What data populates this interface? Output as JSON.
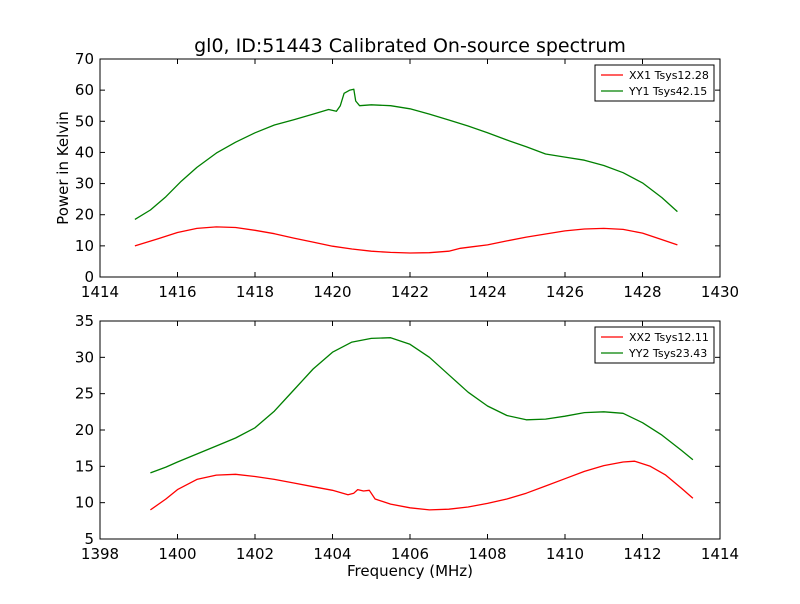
{
  "figure_title": "gl0, ID:51443 Calibrated On-source spectrum",
  "chart_data": [
    {
      "type": "line",
      "title": "gl0, ID:51443 Calibrated On-source spectrum",
      "xlabel": "",
      "ylabel": "Power in Kelvin",
      "xlim": [
        1414,
        1430
      ],
      "ylim": [
        0,
        70
      ],
      "xticks": [
        1414,
        1416,
        1418,
        1420,
        1422,
        1424,
        1426,
        1428,
        1430
      ],
      "yticks": [
        0,
        10,
        20,
        30,
        40,
        50,
        60,
        70
      ],
      "xtick_labels": [
        "1414",
        "1416",
        "1418",
        "1420",
        "1422",
        "1424",
        "1426",
        "1428",
        "1430"
      ],
      "ytick_labels": [
        "0",
        "10",
        "20",
        "30",
        "40",
        "50",
        "60",
        "70"
      ],
      "grid": false,
      "legend_position": "top-right",
      "series": [
        {
          "name": "XX1 Tsys12.28",
          "color": "#ff0000",
          "x": [
            1414.9,
            1415.5,
            1416.0,
            1416.5,
            1417.0,
            1417.5,
            1418.0,
            1418.5,
            1419.0,
            1419.5,
            1420.0,
            1420.5,
            1421.0,
            1421.5,
            1422.0,
            1422.5,
            1423.0,
            1423.3,
            1423.6,
            1424.0,
            1424.5,
            1425.0,
            1425.5,
            1426.0,
            1426.5,
            1427.0,
            1427.5,
            1428.0,
            1428.5,
            1428.9
          ],
          "values": [
            10.0,
            12.3,
            14.3,
            15.6,
            16.1,
            15.9,
            15.0,
            13.9,
            12.5,
            11.2,
            9.9,
            9.0,
            8.3,
            7.9,
            7.7,
            7.8,
            8.3,
            9.2,
            9.7,
            10.3,
            11.6,
            12.8,
            13.8,
            14.8,
            15.4,
            15.6,
            15.3,
            14.1,
            12.0,
            10.3
          ]
        },
        {
          "name": "YY1 Tsys42.15",
          "color": "#008000",
          "x": [
            1414.9,
            1415.3,
            1415.7,
            1416.1,
            1416.5,
            1417.0,
            1417.5,
            1418.0,
            1418.5,
            1419.0,
            1419.5,
            1419.9,
            1420.1,
            1420.2,
            1420.3,
            1420.45,
            1420.55,
            1420.6,
            1420.7,
            1421.0,
            1421.5,
            1422.0,
            1422.5,
            1423.0,
            1423.5,
            1424.0,
            1424.5,
            1425.0,
            1425.5,
            1426.0,
            1426.5,
            1427.0,
            1427.5,
            1428.0,
            1428.5,
            1428.9
          ],
          "values": [
            18.5,
            21.5,
            25.8,
            30.8,
            35.2,
            39.8,
            43.3,
            46.3,
            48.8,
            50.5,
            52.3,
            53.8,
            53.2,
            55.0,
            59.0,
            60.0,
            60.3,
            56.5,
            55.0,
            55.3,
            55.0,
            54.0,
            52.3,
            50.4,
            48.5,
            46.3,
            44.0,
            41.8,
            39.5,
            38.5,
            37.5,
            35.8,
            33.5,
            30.2,
            25.5,
            21.0
          ]
        }
      ]
    },
    {
      "type": "line",
      "title": "",
      "xlabel": "Frequency (MHz)",
      "ylabel": "",
      "xlim": [
        1398,
        1414
      ],
      "ylim": [
        5,
        35
      ],
      "xticks": [
        1398,
        1400,
        1402,
        1404,
        1406,
        1408,
        1410,
        1412,
        1414
      ],
      "yticks": [
        5,
        10,
        15,
        20,
        25,
        30,
        35
      ],
      "xtick_labels": [
        "1398",
        "1400",
        "1402",
        "1404",
        "1406",
        "1408",
        "1410",
        "1412",
        "1414"
      ],
      "ytick_labels": [
        "5",
        "10",
        "15",
        "20",
        "25",
        "30",
        "35"
      ],
      "grid": false,
      "legend_position": "top-right",
      "series": [
        {
          "name": "XX2 Tsys12.11",
          "color": "#ff0000",
          "x": [
            1399.3,
            1399.7,
            1400.0,
            1400.5,
            1401.0,
            1401.5,
            1402.0,
            1402.5,
            1403.0,
            1403.5,
            1404.0,
            1404.4,
            1404.55,
            1404.65,
            1404.8,
            1404.95,
            1405.1,
            1405.5,
            1406.0,
            1406.5,
            1407.0,
            1407.5,
            1408.0,
            1408.5,
            1409.0,
            1409.5,
            1410.0,
            1410.5,
            1411.0,
            1411.5,
            1411.8,
            1412.2,
            1412.6,
            1413.0,
            1413.3
          ],
          "values": [
            9.0,
            10.5,
            11.8,
            13.2,
            13.8,
            13.9,
            13.6,
            13.2,
            12.7,
            12.2,
            11.7,
            11.1,
            11.3,
            11.8,
            11.6,
            11.7,
            10.5,
            9.8,
            9.3,
            9.0,
            9.1,
            9.4,
            9.9,
            10.5,
            11.3,
            12.3,
            13.3,
            14.3,
            15.1,
            15.6,
            15.7,
            15.0,
            13.8,
            12.0,
            10.6
          ]
        },
        {
          "name": "YY2 Tsys23.43",
          "color": "#008000",
          "x": [
            1399.3,
            1399.7,
            1400.0,
            1400.5,
            1401.0,
            1401.5,
            1402.0,
            1402.5,
            1403.0,
            1403.5,
            1404.0,
            1404.5,
            1405.0,
            1405.5,
            1406.0,
            1406.5,
            1407.0,
            1407.5,
            1408.0,
            1408.5,
            1409.0,
            1409.5,
            1410.0,
            1410.5,
            1411.0,
            1411.5,
            1412.0,
            1412.5,
            1413.0,
            1413.3
          ],
          "values": [
            14.1,
            14.9,
            15.6,
            16.7,
            17.8,
            18.9,
            20.3,
            22.6,
            25.5,
            28.4,
            30.7,
            32.1,
            32.6,
            32.7,
            31.8,
            30.0,
            27.6,
            25.2,
            23.3,
            22.0,
            21.4,
            21.5,
            21.9,
            22.4,
            22.5,
            22.3,
            21.0,
            19.3,
            17.2,
            15.9
          ]
        }
      ]
    }
  ]
}
